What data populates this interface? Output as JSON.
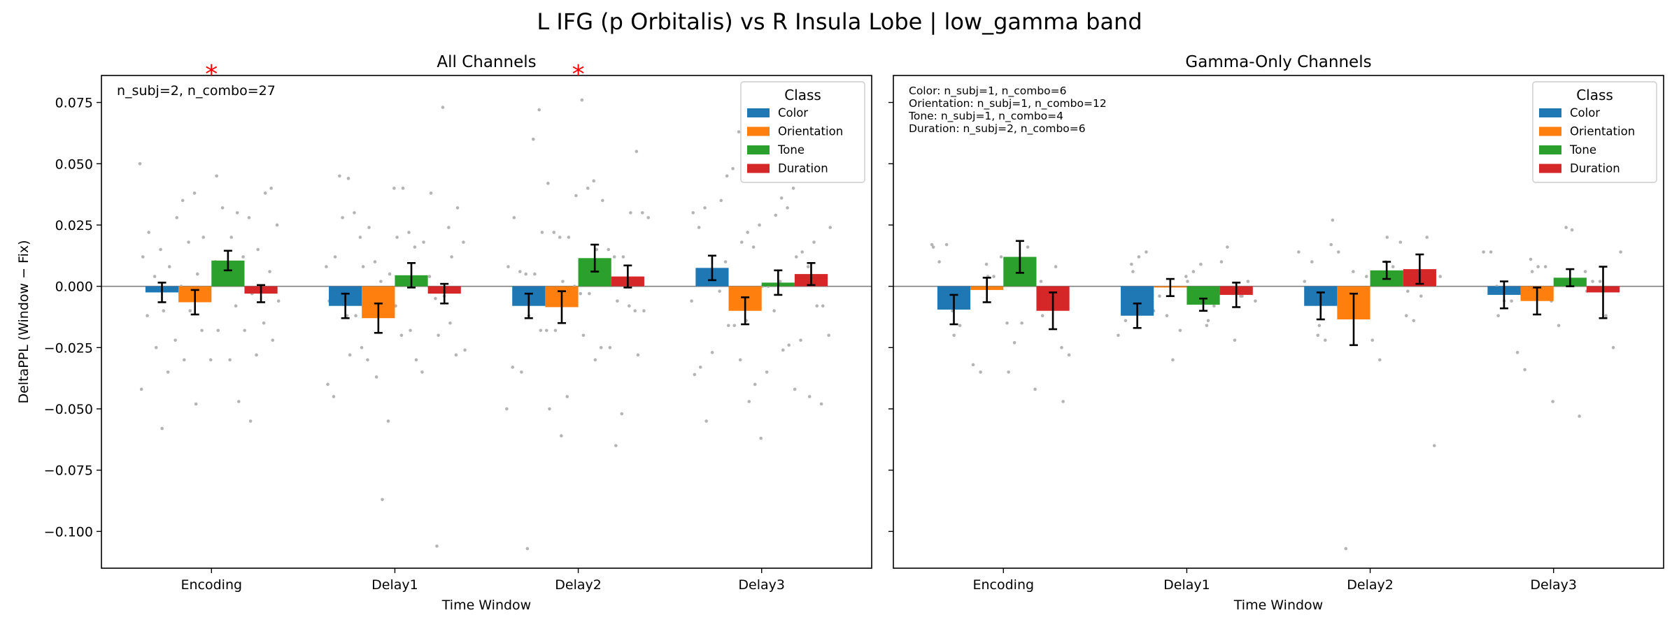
{
  "suptitle": "L IFG (p Orbitalis) vs R Insula Lobe  |  low_gamma band",
  "colors": {
    "Color": "#1f77b4",
    "Orientation": "#ff7f0e",
    "Tone": "#2ca02c",
    "Duration": "#d62728",
    "scatter": "#b4b4b4",
    "sig": "#ff0000"
  },
  "legend_title": "Class",
  "chart_data": [
    {
      "type": "bar",
      "title": "All Channels",
      "xlabel": "Time Window",
      "ylabel": "DeltaPPL (Window − Fix)",
      "ylim": [
        -0.115,
        0.086
      ],
      "yticks": [
        -0.1,
        -0.075,
        -0.05,
        -0.025,
        0.0,
        0.025,
        0.05,
        0.075
      ],
      "ytick_labels": [
        "−0.100",
        "−0.075",
        "−0.050",
        "−0.025",
        "0.000",
        "0.025",
        "0.050",
        "0.075"
      ],
      "categories": [
        "Encoding",
        "Delay1",
        "Delay2",
        "Delay3"
      ],
      "legend_position": "top-right",
      "annotation": "n_subj=2, n_combo=27",
      "significance": [
        {
          "category": "Encoding",
          "marker": "*"
        },
        {
          "category": "Delay2",
          "marker": "*"
        }
      ],
      "series": [
        {
          "name": "Color",
          "values": [
            -0.0025,
            -0.008,
            -0.008,
            0.0075
          ],
          "errors": [
            0.004,
            0.005,
            0.005,
            0.005
          ]
        },
        {
          "name": "Orientation",
          "values": [
            -0.0065,
            -0.013,
            -0.0085,
            -0.01
          ],
          "errors": [
            0.005,
            0.006,
            0.0065,
            0.0055
          ]
        },
        {
          "name": "Tone",
          "values": [
            0.0105,
            0.0045,
            0.0115,
            0.0015
          ],
          "errors": [
            0.004,
            0.005,
            0.0055,
            0.005
          ]
        },
        {
          "name": "Duration",
          "values": [
            -0.003,
            -0.003,
            0.004,
            0.005
          ],
          "errors": [
            0.0035,
            0.004,
            0.0045,
            0.0045
          ]
        }
      ],
      "points": [
        [
          0.05,
          0.038,
          0.028,
          0.015,
          0.01,
          0.006,
          0.0,
          -0.008,
          -0.012,
          -0.018,
          -0.028,
          -0.035,
          0.032,
          0.025,
          0.018,
          0.012,
          0.004,
          -0.004,
          -0.015,
          -0.022,
          -0.03,
          -0.042,
          -0.048,
          -0.055,
          -0.058,
          0.045,
          0.04,
          0.035,
          0.03,
          0.022,
          0.02,
          0.015,
          0.008,
          0.002,
          -0.006,
          -0.01,
          -0.018,
          -0.025,
          -0.03,
          0.038,
          0.028,
          0.02,
          0.012,
          0.005,
          -0.003,
          -0.01,
          -0.018,
          -0.022,
          -0.03,
          -0.047
        ],
        [
          0.045,
          0.04,
          0.024,
          0.02,
          0.016,
          0.008,
          0.002,
          -0.005,
          -0.012,
          -0.02,
          -0.028,
          -0.03,
          -0.035,
          -0.045,
          -0.055,
          0.073,
          0.03,
          0.022,
          0.018,
          0.01,
          0.004,
          -0.002,
          -0.008,
          -0.015,
          -0.025,
          -0.03,
          -0.04,
          -0.087,
          -0.106,
          0.044,
          0.04,
          0.032,
          0.024,
          0.018,
          0.012,
          0.005,
          -0.004,
          -0.012,
          -0.018,
          -0.026,
          -0.037,
          0.038,
          0.028,
          0.02,
          0.012,
          0.008,
          0.002,
          -0.006,
          -0.012,
          -0.02,
          -0.028
        ],
        [
          0.072,
          0.043,
          0.028,
          0.02,
          0.012,
          0.005,
          -0.003,
          -0.01,
          -0.018,
          -0.025,
          -0.033,
          -0.045,
          -0.052,
          0.06,
          0.04,
          0.03,
          0.022,
          0.015,
          0.006,
          0.0,
          -0.008,
          -0.018,
          -0.03,
          -0.05,
          -0.061,
          -0.065,
          -0.107,
          0.076,
          0.055,
          0.042,
          0.035,
          0.028,
          0.02,
          0.012,
          0.005,
          -0.003,
          -0.01,
          -0.018,
          -0.025,
          -0.035,
          0.037,
          0.03,
          0.022,
          0.015,
          0.008,
          0.002,
          -0.006,
          -0.012,
          -0.02,
          -0.028,
          -0.05
        ],
        [
          0.063,
          0.04,
          0.032,
          0.025,
          0.018,
          0.01,
          0.002,
          -0.006,
          -0.014,
          -0.022,
          -0.027,
          -0.035,
          -0.048,
          0.048,
          0.032,
          0.024,
          0.016,
          0.008,
          -0.002,
          -0.01,
          -0.02,
          -0.03,
          -0.042,
          -0.055,
          -0.062,
          0.052,
          0.045,
          0.036,
          0.03,
          0.022,
          0.014,
          0.006,
          0.0,
          -0.008,
          -0.016,
          -0.024,
          -0.033,
          -0.04,
          -0.045,
          0.035,
          0.029,
          0.024,
          0.018,
          0.012,
          0.006,
          0.0,
          -0.008,
          -0.016,
          -0.026,
          -0.036,
          -0.047
        ]
      ]
    },
    {
      "type": "bar",
      "title": "Gamma-Only Channels",
      "xlabel": "Time Window",
      "ylim": [
        -0.115,
        0.086
      ],
      "categories": [
        "Encoding",
        "Delay1",
        "Delay2",
        "Delay3"
      ],
      "legend_position": "top-right",
      "annotation_lines": [
        "Color: n_subj=1, n_combo=6",
        "Orientation: n_subj=1, n_combo=12",
        "Tone: n_subj=1, n_combo=4",
        "Duration: n_subj=2, n_combo=6"
      ],
      "series": [
        {
          "name": "Color",
          "values": [
            -0.0095,
            -0.012,
            -0.008,
            -0.0035
          ],
          "errors": [
            0.006,
            0.005,
            0.0055,
            0.0055
          ]
        },
        {
          "name": "Orientation",
          "values": [
            -0.0015,
            -0.0005,
            -0.0135,
            -0.006
          ],
          "errors": [
            0.005,
            0.0035,
            0.0105,
            0.0055
          ]
        },
        {
          "name": "Tone",
          "values": [
            0.012,
            -0.0075,
            0.0065,
            0.0035
          ],
          "errors": [
            0.0065,
            0.0025,
            0.0035,
            0.0035
          ]
        },
        {
          "name": "Duration",
          "values": [
            -0.01,
            -0.0035,
            0.007,
            -0.0025
          ],
          "errors": [
            0.0075,
            0.005,
            0.006,
            0.0105
          ]
        }
      ],
      "points": [
        [
          0.017,
          0.009,
          0.002,
          -0.01,
          -0.015,
          -0.025,
          -0.032,
          0.016,
          0.01,
          0.004,
          -0.006,
          -0.016,
          -0.023,
          -0.028,
          -0.035,
          -0.042,
          0.017,
          0.012,
          0.008,
          -0.008,
          -0.015,
          0.016,
          0.004,
          -0.012,
          -0.02,
          -0.035,
          -0.047
        ],
        [
          0.009,
          0.004,
          -0.004,
          -0.01,
          -0.016,
          -0.02,
          -0.03,
          0.016,
          0.012,
          0.006,
          0.002,
          -0.004,
          -0.008,
          -0.014,
          -0.018,
          -0.022,
          0.014,
          0.009,
          -0.006,
          -0.012,
          0.01,
          0.006,
          0.002,
          -0.004,
          -0.01,
          -0.014
        ],
        [
          0.017,
          0.01,
          0.004,
          -0.004,
          -0.012,
          -0.02,
          -0.022,
          0.02,
          0.014,
          0.008,
          0.002,
          -0.006,
          -0.014,
          -0.022,
          -0.03,
          -0.065,
          -0.107,
          0.018,
          0.01,
          0.004,
          -0.004,
          0.027,
          0.02,
          0.014,
          0.006,
          -0.002,
          -0.016
        ],
        [
          0.011,
          0.006,
          0.0,
          -0.006,
          -0.012,
          -0.027,
          0.023,
          0.014,
          0.008,
          0.002,
          -0.006,
          -0.016,
          -0.025,
          -0.034,
          -0.053,
          0.014,
          0.008,
          0.002,
          -0.006,
          0.024,
          0.014,
          0.006,
          -0.002,
          -0.012,
          -0.047
        ]
      ]
    }
  ]
}
